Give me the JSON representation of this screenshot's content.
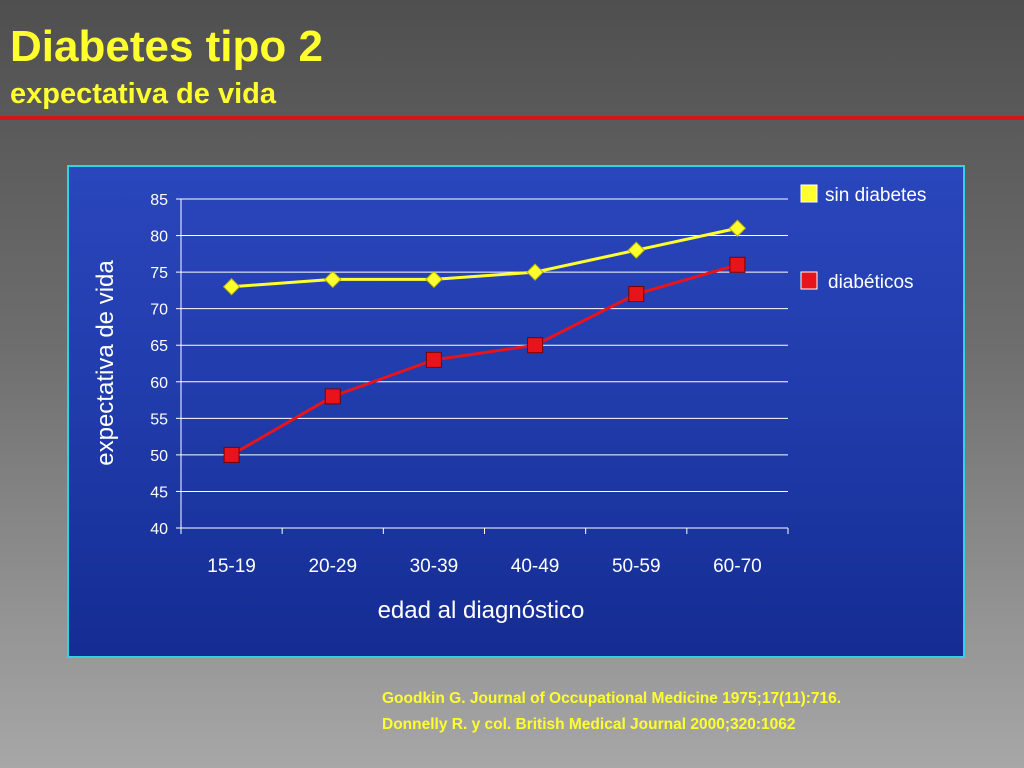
{
  "slide": {
    "title": "Diabetes tipo 2",
    "subtitle": "expectativa de vida",
    "references": [
      "Goodkin G. Journal of Occupational Medicine 1975;17(11):716.",
      "Donnelly R. y col. British Medical Journal 2000;320:1062"
    ]
  },
  "colors": {
    "title": "#ffff2e",
    "rule": "#d4151b",
    "frame": "#33d1e6",
    "series_sin": "#ffff2e",
    "series_dia": "#e8141b"
  },
  "chart_data": {
    "type": "line",
    "title": "",
    "xlabel": "edad al diagnóstico",
    "ylabel": "expectativa de vida",
    "categories": [
      "15-19",
      "20-29",
      "30-39",
      "40-49",
      "50-59",
      "60-70"
    ],
    "ylim": [
      40,
      85
    ],
    "yticks": [
      40,
      45,
      50,
      55,
      60,
      65,
      70,
      75,
      80,
      85
    ],
    "grid": true,
    "legend": "top-right",
    "series": [
      {
        "name": "sin diabetes",
        "marker": "diamond",
        "color": "#ffff2e",
        "values": [
          73,
          74,
          74,
          75,
          78,
          81
        ]
      },
      {
        "name": "diabéticos",
        "marker": "square",
        "color": "#e8141b",
        "values": [
          50,
          58,
          63,
          65,
          72,
          76
        ]
      }
    ]
  }
}
